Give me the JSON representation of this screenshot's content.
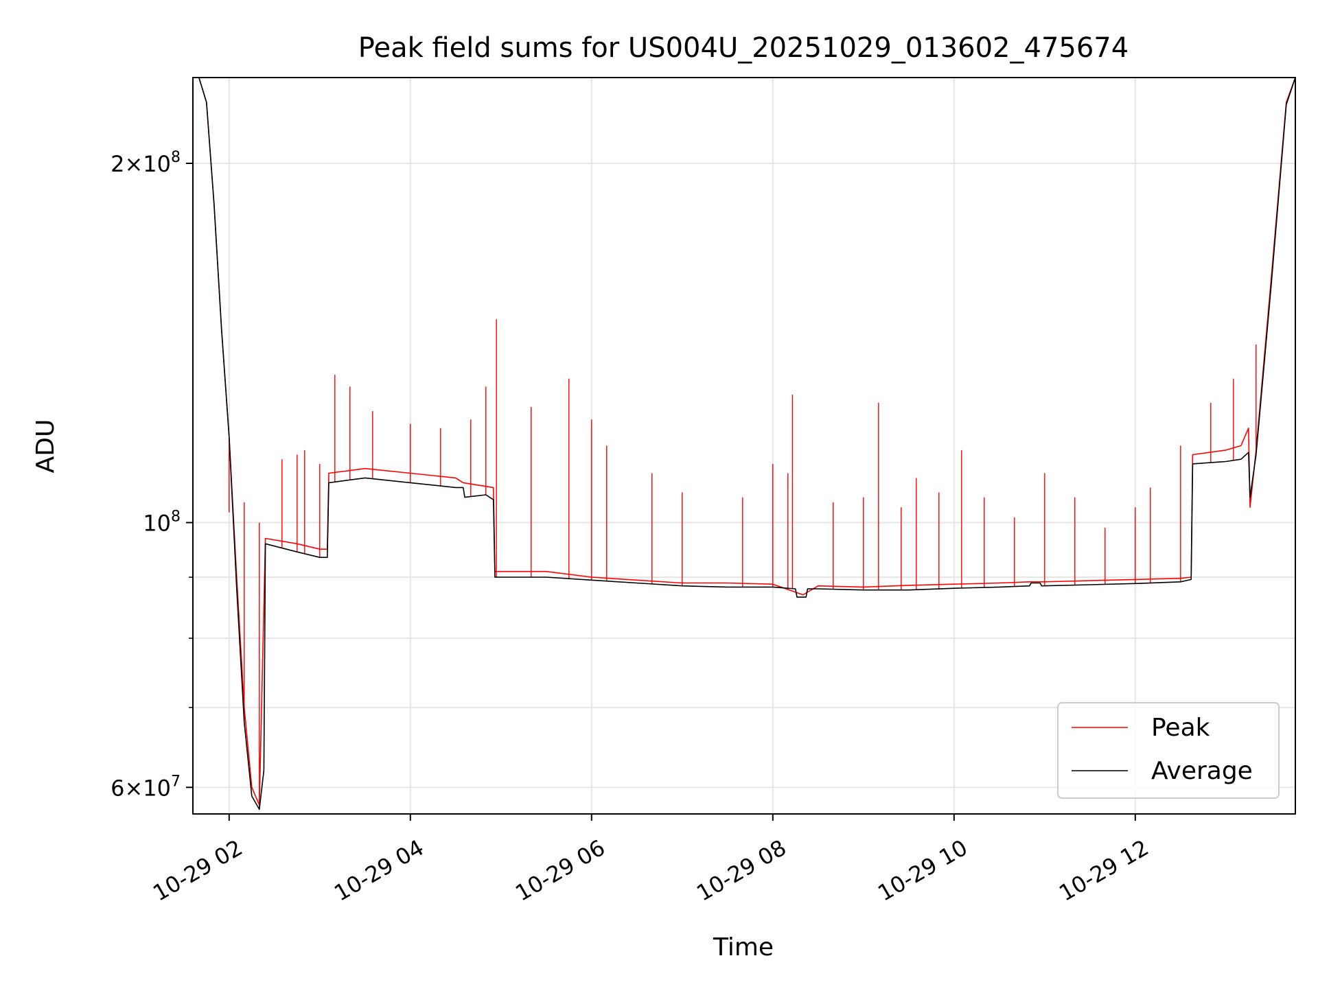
{
  "chart_data": {
    "type": "line",
    "title": "Peak field sums for US004U_20251029_013602_475674",
    "xlabel": "Time",
    "ylabel": "ADU",
    "y_scale": "log",
    "grid": true,
    "x_range": [
      "10-29 01:36",
      "10-29 13:46"
    ],
    "ylim": [
      57000000,
      236000000
    ],
    "x_ticks": [
      {
        "value": "10-29 02",
        "hour": 2
      },
      {
        "value": "10-29 04",
        "hour": 4
      },
      {
        "value": "10-29 06",
        "hour": 6
      },
      {
        "value": "10-29 08",
        "hour": 8
      },
      {
        "value": "10-29 10",
        "hour": 10
      },
      {
        "value": "10-29 12",
        "hour": 12
      }
    ],
    "y_ticks": [
      {
        "value": 60000000,
        "base": "6",
        "exp": "7"
      },
      {
        "value": 100000000,
        "base": "",
        "exp": "8"
      },
      {
        "value": 200000000,
        "base": "2",
        "exp": "8"
      }
    ],
    "y_minor_ticks": [
      70000000,
      80000000,
      90000000
    ],
    "legend": {
      "placement": "lower right"
    },
    "colors": {
      "peak": "#ff0000",
      "average": "#000000"
    },
    "series": [
      {
        "name": "Peak",
        "color": "#ff0000",
        "x": [
          "01:36",
          "01:40",
          "01:45",
          "01:50",
          "01:55",
          "02:00",
          "02:05",
          "02:10",
          "02:15",
          "02:20",
          "02:23",
          "02:24",
          "02:45",
          "03:00",
          "03:05",
          "03:06",
          "03:30",
          "04:00",
          "04:30",
          "04:35",
          "04:55",
          "04:56",
          "05:30",
          "06:00",
          "06:30",
          "07:00",
          "07:30",
          "08:00",
          "08:20",
          "08:30",
          "09:00",
          "09:30",
          "10:00",
          "10:30",
          "10:50",
          "11:00",
          "11:30",
          "12:00",
          "12:30",
          "12:37",
          "12:38",
          "13:00",
          "13:10",
          "13:15",
          "13:16",
          "13:20",
          "13:30",
          "13:40",
          "13:46"
        ],
        "y": [
          236000000,
          236000000,
          225000000,
          185000000,
          145000000,
          118000000,
          90000000,
          70000000,
          60000000,
          58000000,
          85000000,
          97000000,
          96000000,
          95000000,
          95000000,
          110000000,
          111000000,
          110000000,
          109000000,
          108000000,
          107000000,
          91000000,
          91000000,
          90000000,
          89500000,
          89000000,
          89000000,
          88800000,
          87000000,
          88500000,
          88300000,
          88600000,
          88800000,
          89000000,
          89200000,
          89200000,
          89400000,
          89600000,
          89800000,
          90000000,
          114000000,
          115000000,
          116000000,
          120000000,
          103000000,
          115000000,
          160000000,
          225000000,
          236000000
        ],
        "spikes": [
          [
            "02:00",
            102000000
          ],
          [
            "02:10",
            104000000
          ],
          [
            "02:20",
            100000000
          ],
          [
            "02:35",
            113000000
          ],
          [
            "02:45",
            114000000
          ],
          [
            "02:50",
            115000000
          ],
          [
            "03:00",
            112000000
          ],
          [
            "03:10",
            133000000
          ],
          [
            "03:20",
            130000000
          ],
          [
            "03:35",
            124000000
          ],
          [
            "04:00",
            121000000
          ],
          [
            "04:20",
            120000000
          ],
          [
            "04:40",
            122000000
          ],
          [
            "04:50",
            130000000
          ],
          [
            "04:57",
            148000000
          ],
          [
            "05:20",
            125000000
          ],
          [
            "05:45",
            132000000
          ],
          [
            "06:00",
            122000000
          ],
          [
            "06:10",
            116000000
          ],
          [
            "06:40",
            110000000
          ],
          [
            "07:00",
            106000000
          ],
          [
            "07:40",
            105000000
          ],
          [
            "08:00",
            112000000
          ],
          [
            "08:10",
            110000000
          ],
          [
            "08:13",
            128000000
          ],
          [
            "08:40",
            104000000
          ],
          [
            "09:00",
            105000000
          ],
          [
            "09:10",
            126000000
          ],
          [
            "09:25",
            103000000
          ],
          [
            "09:35",
            109000000
          ],
          [
            "09:50",
            106000000
          ],
          [
            "10:05",
            115000000
          ],
          [
            "10:20",
            105000000
          ],
          [
            "10:40",
            101000000
          ],
          [
            "11:00",
            110000000
          ],
          [
            "11:20",
            105000000
          ],
          [
            "11:40",
            99000000
          ],
          [
            "12:00",
            103000000
          ],
          [
            "12:10",
            107000000
          ],
          [
            "12:30",
            116000000
          ],
          [
            "12:50",
            126000000
          ],
          [
            "13:05",
            132000000
          ],
          [
            "13:20",
            141000000
          ]
        ]
      },
      {
        "name": "Average",
        "color": "#000000",
        "x": [
          "01:36",
          "01:40",
          "01:45",
          "01:50",
          "01:55",
          "02:00",
          "02:05",
          "02:10",
          "02:15",
          "02:20",
          "02:23",
          "02:24",
          "02:45",
          "03:00",
          "03:05",
          "03:06",
          "03:30",
          "04:00",
          "04:30",
          "04:35",
          "04:36",
          "04:50",
          "04:55",
          "04:56",
          "05:30",
          "06:00",
          "06:30",
          "07:00",
          "07:30",
          "08:00",
          "08:15",
          "08:16",
          "08:22",
          "08:23",
          "08:30",
          "09:00",
          "09:30",
          "10:00",
          "10:30",
          "10:50",
          "10:51",
          "10:57",
          "10:58",
          "11:30",
          "12:00",
          "12:30",
          "12:37",
          "12:38",
          "13:00",
          "13:10",
          "13:15",
          "13:16",
          "13:20",
          "13:30",
          "13:40",
          "13:46"
        ],
        "y": [
          236000000,
          236000000,
          225000000,
          185000000,
          145000000,
          118000000,
          88000000,
          68000000,
          59000000,
          57500000,
          62000000,
          96000000,
          94500000,
          93500000,
          93500000,
          108000000,
          109000000,
          108000000,
          107000000,
          107000000,
          105000000,
          105500000,
          104500000,
          90000000,
          90000000,
          89500000,
          89000000,
          88500000,
          88300000,
          88300000,
          88000000,
          86600000,
          86600000,
          88000000,
          88000000,
          87800000,
          87800000,
          88100000,
          88300000,
          88500000,
          89000000,
          89000000,
          88500000,
          88700000,
          88900000,
          89200000,
          89600000,
          112000000,
          112500000,
          113000000,
          114500000,
          105000000,
          114000000,
          158000000,
          224000000,
          236000000
        ]
      }
    ]
  }
}
